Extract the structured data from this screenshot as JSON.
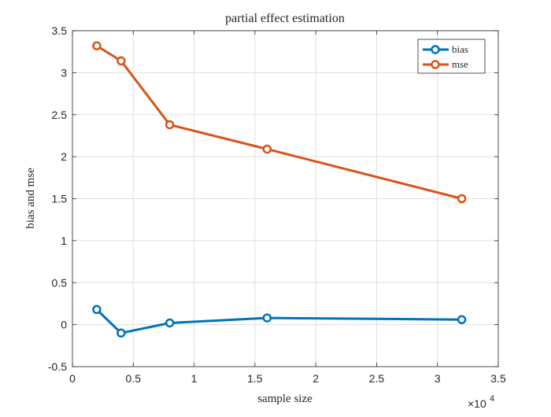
{
  "chart_data": {
    "type": "line",
    "title": "partial effect estimation",
    "xlabel": "sample size",
    "ylabel": "bias and mse",
    "x_exponent_base": "×10",
    "x_exponent_power": "4",
    "xlim": [
      0,
      35000
    ],
    "ylim": [
      -0.5,
      3.5
    ],
    "x_ticks": [
      0,
      5000,
      10000,
      15000,
      20000,
      25000,
      30000,
      35000
    ],
    "x_tick_labels": [
      "0",
      "0.5",
      "1",
      "1.5",
      "2",
      "2.5",
      "3",
      "3.5"
    ],
    "y_ticks": [
      -0.5,
      0,
      0.5,
      1,
      1.5,
      2,
      2.5,
      3,
      3.5
    ],
    "y_tick_labels": [
      "-0.5",
      "0",
      "0.5",
      "1",
      "1.5",
      "2",
      "2.5",
      "3",
      "3.5"
    ],
    "grid": true,
    "legend_position": "top-right",
    "x": [
      2000,
      4000,
      8000,
      16000,
      32000
    ],
    "series": [
      {
        "name": "bias",
        "color": "#0072bd",
        "values": [
          0.18,
          -0.1,
          0.02,
          0.08,
          0.06
        ]
      },
      {
        "name": "mse",
        "color": "#d95319",
        "values": [
          3.32,
          3.14,
          2.38,
          2.09,
          1.5
        ]
      }
    ]
  }
}
